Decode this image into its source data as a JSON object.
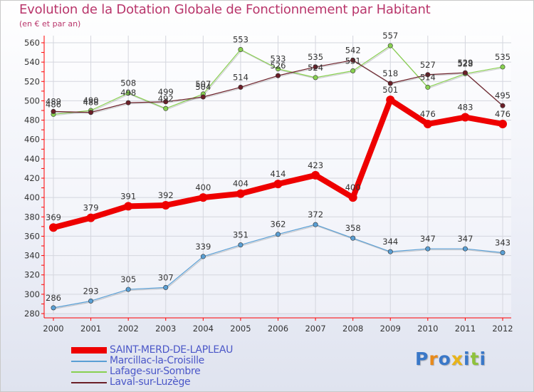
{
  "header": {
    "title": "Evolution de la Dotation Globale de Fonctionnement par Habitant",
    "subtitle": "(en € et par an)"
  },
  "logo": {
    "letters": [
      "P",
      "r",
      "o",
      "x",
      "i",
      "t",
      "i"
    ],
    "colors": [
      "#3a78c8",
      "#e88a1a",
      "#3a78c8",
      "#e8b41a",
      "#3a78c8",
      "#8fc23c",
      "#3a78c8"
    ]
  },
  "chart_data": {
    "type": "line",
    "title": "Evolution de la Dotation Globale de Fonctionnement par Habitant",
    "subtitle": "(en € et par an)",
    "xlabel": "",
    "ylabel": "",
    "x": [
      "2000",
      "2001",
      "2002",
      "2003",
      "2004",
      "2005",
      "2006",
      "2007",
      "2008",
      "2009",
      "2010",
      "2011",
      "2012"
    ],
    "ylim": [
      280,
      560
    ],
    "yticks": [
      280,
      300,
      320,
      340,
      360,
      380,
      400,
      420,
      440,
      460,
      480,
      500,
      520,
      540,
      560
    ],
    "grid": true,
    "legend_position": "bottom-left",
    "series": [
      {
        "name": "SAINT-MERD-DE-LAPLEAU",
        "color": "#ee0000",
        "values": [
          369,
          379,
          391,
          392,
          400,
          404,
          414,
          423,
          400,
          501,
          476,
          483,
          476
        ]
      },
      {
        "name": "Marcillac-la-Croisille",
        "color": "#5a9fd4",
        "values": [
          286,
          293,
          305,
          307,
          339,
          351,
          362,
          372,
          358,
          344,
          347,
          347,
          343
        ]
      },
      {
        "name": "Lafage-sur-Sombre",
        "color": "#88d050",
        "values": [
          486,
          490,
          508,
          492,
          507,
          553,
          533,
          524,
          531,
          557,
          514,
          528,
          535
        ]
      },
      {
        "name": "Laval-sur-Luzège",
        "color": "#6b1f28",
        "values": [
          489,
          488,
          498,
          499,
          504,
          514,
          526,
          535,
          542,
          518,
          527,
          529,
          495
        ]
      }
    ]
  }
}
